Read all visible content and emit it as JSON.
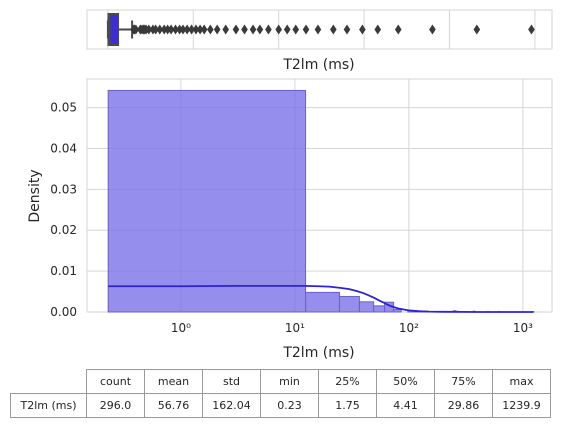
{
  "chart_data": [
    {
      "type": "box",
      "xlabel": "T2lm (ms)",
      "x_scale": "linear",
      "xlim": [
        -61,
        1300
      ],
      "box": {
        "whisker_low": 0.23,
        "q1": 1.75,
        "median": 4.41,
        "q3": 29.86,
        "whisker_high": 71
      },
      "outliers": [
        75,
        78,
        82,
        95,
        100,
        104,
        108,
        112,
        120,
        132,
        140,
        152,
        165,
        175,
        185,
        198,
        210,
        220,
        232,
        245,
        258,
        270,
        282,
        300,
        320,
        345,
        375,
        400,
        425,
        445,
        470,
        500,
        525,
        550,
        580,
        615,
        660,
        700,
        745,
        790,
        850,
        950,
        1080,
        1239.9
      ],
      "grid": true,
      "colors": {
        "box": "#3b2fd4",
        "line": "#4a4a4a",
        "outlier": "#3a3a3a"
      }
    },
    {
      "type": "histogram",
      "xlabel": "T2lm (ms)",
      "ylabel": "Density",
      "x_scale": "log",
      "xlim": [
        0.15,
        1800
      ],
      "ylim": [
        0,
        0.057
      ],
      "xticks": [
        {
          "value": 1,
          "label": "10⁰"
        },
        {
          "value": 10,
          "label": "10¹"
        },
        {
          "value": 100,
          "label": "10²"
        },
        {
          "value": 1000,
          "label": "10³"
        }
      ],
      "yticks": [
        {
          "value": 0,
          "label": "0.00"
        },
        {
          "value": 0.01,
          "label": "0.01"
        },
        {
          "value": 0.02,
          "label": "0.02"
        },
        {
          "value": 0.03,
          "label": "0.03"
        },
        {
          "value": 0.04,
          "label": "0.04"
        },
        {
          "value": 0.05,
          "label": "0.05"
        }
      ],
      "bins": [
        {
          "x0": 0.23,
          "x1": 12.4,
          "density": 0.0542
        },
        {
          "x0": 12.4,
          "x1": 24.6,
          "density": 0.0048
        },
        {
          "x0": 24.6,
          "x1": 36.8,
          "density": 0.0038
        },
        {
          "x0": 36.8,
          "x1": 49.0,
          "density": 0.0025
        },
        {
          "x0": 49.0,
          "x1": 61.2,
          "density": 0.0015
        },
        {
          "x0": 61.2,
          "x1": 73.4,
          "density": 0.0024
        },
        {
          "x0": 73.4,
          "x1": 85.6,
          "density": 0.0006
        },
        {
          "x0": 97.8,
          "x1": 110.0,
          "density": 0.0004
        },
        {
          "x0": 110.0,
          "x1": 122.2,
          "density": 0.0003
        },
        {
          "x0": 122.2,
          "x1": 134.4,
          "density": 0.0002
        },
        {
          "x0": 134.4,
          "x1": 146.6,
          "density": 0.0002
        },
        {
          "x0": 146.6,
          "x1": 158.8,
          "density": 0.0001
        },
        {
          "x0": 195.4,
          "x1": 207.6,
          "density": 0.0001
        },
        {
          "x0": 244.2,
          "x1": 256.4,
          "density": 0.0003
        },
        {
          "x0": 256.4,
          "x1": 268.6,
          "density": 0.0002
        },
        {
          "x0": 293.0,
          "x1": 305.2,
          "density": 0.0001
        },
        {
          "x0": 366.2,
          "x1": 378.4,
          "density": 0.0002
        },
        {
          "x0": 488.2,
          "x1": 500.4,
          "density": 0.0001
        },
        {
          "x0": 610.2,
          "x1": 622.4,
          "density": 0.0001
        },
        {
          "x0": 1232,
          "x1": 1244,
          "density": 0.0001
        }
      ],
      "kde": [
        [
          0.23,
          0.0063
        ],
        [
          1,
          0.0063
        ],
        [
          3,
          0.0064
        ],
        [
          8,
          0.0064
        ],
        [
          12,
          0.0064
        ],
        [
          16,
          0.0063
        ],
        [
          20,
          0.0062
        ],
        [
          25,
          0.0059
        ],
        [
          30,
          0.0056
        ],
        [
          35,
          0.0051
        ],
        [
          40,
          0.0046
        ],
        [
          45,
          0.004
        ],
        [
          50,
          0.0034
        ],
        [
          55,
          0.0028
        ],
        [
          60,
          0.0023
        ],
        [
          65,
          0.0018
        ],
        [
          70,
          0.0014
        ],
        [
          80,
          0.0009
        ],
        [
          90,
          0.0006
        ],
        [
          100,
          0.0004
        ],
        [
          120,
          0.0002
        ],
        [
          150,
          0.0001
        ],
        [
          200,
          5e-05
        ],
        [
          400,
          0.0
        ],
        [
          1239.9,
          0.0
        ]
      ],
      "grid": true,
      "colors": {
        "bar_fill": "#7b72e9",
        "bar_edge": "#6a62c8",
        "kde": "#2d22d4"
      }
    }
  ],
  "stats_table": {
    "columns": [
      "count",
      "mean",
      "std",
      "min",
      "25%",
      "50%",
      "75%",
      "max"
    ],
    "row_label": "T2lm (ms)",
    "values": [
      "296.0",
      "56.76",
      "162.04",
      "0.23",
      "1.75",
      "4.41",
      "29.86",
      "1239.9"
    ]
  }
}
